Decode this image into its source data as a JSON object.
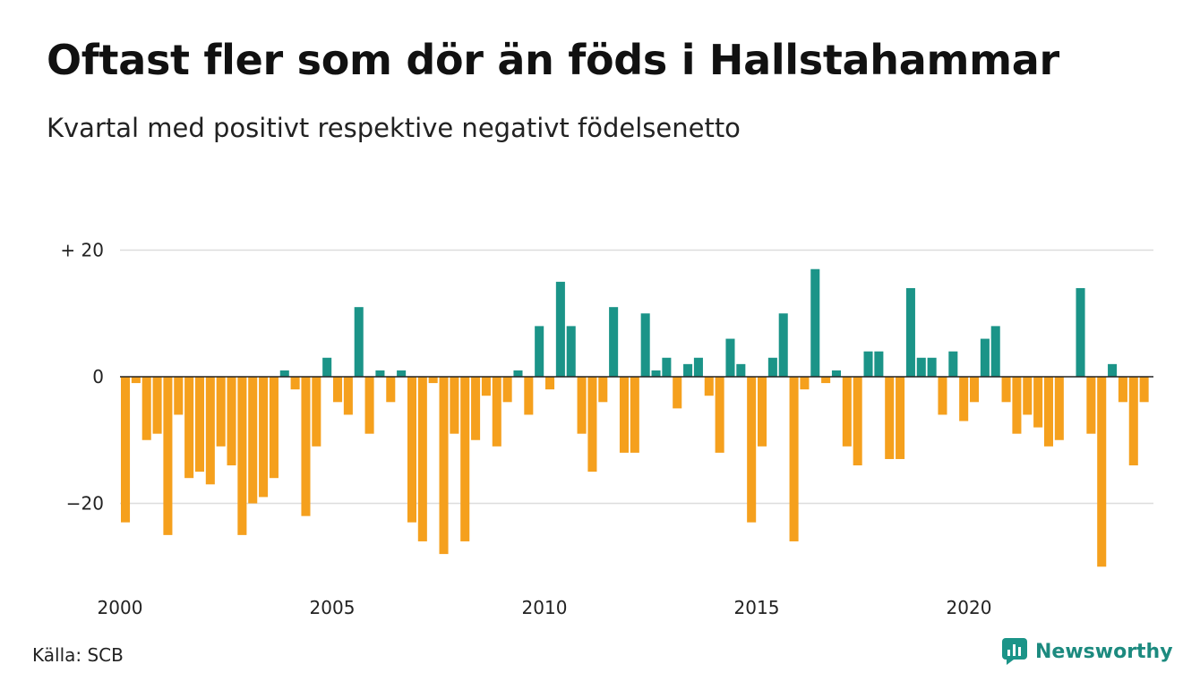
{
  "title": "Oftast fler som dör än föds i Hallstahammar",
  "subtitle": "Kvartal med positivt respektive negativt födelsenetto",
  "source": "Källa: SCB",
  "brand": {
    "name": "Newsworthy",
    "icon": "newsworthy-logo-icon"
  },
  "colors": {
    "positive": "#1b9488",
    "negative": "#f5a01d",
    "grid": "#dddddd",
    "axis": "#222222"
  },
  "chart_data": {
    "type": "bar",
    "ylim": [
      -30,
      20
    ],
    "yticks": [
      20,
      0,
      -20
    ],
    "ytick_labels": [
      "+ 20",
      "0",
      "−20"
    ],
    "xtick_labels": [
      "2000",
      "2005",
      "2010",
      "2015",
      "2020"
    ],
    "grid": true,
    "quarters_start": "2000 Q1",
    "values": [
      -23,
      -1,
      -10,
      -9,
      -25,
      -6,
      -16,
      -15,
      -17,
      -11,
      -14,
      -25,
      -20,
      -19,
      -16,
      1,
      -2,
      -22,
      -11,
      3,
      -4,
      -6,
      11,
      -9,
      1,
      -4,
      1,
      -23,
      -26,
      -1,
      -28,
      -9,
      -26,
      -10,
      -3,
      -11,
      -4,
      1,
      -6,
      8,
      -2,
      15,
      8,
      -9,
      -15,
      -4,
      11,
      -12,
      -12,
      10,
      1,
      3,
      -5,
      2,
      3,
      -3,
      -12,
      6,
      2,
      -23,
      -11,
      3,
      10,
      -26,
      -2,
      17,
      -1,
      1,
      -11,
      -14,
      4,
      4,
      -13,
      -13,
      14,
      3,
      3,
      -6,
      4,
      -7,
      -4,
      6,
      8,
      -4,
      -9,
      -6,
      -8,
      -11,
      -10,
      0,
      14,
      -9,
      -30,
      2,
      -4,
      -14,
      -4
    ]
  }
}
